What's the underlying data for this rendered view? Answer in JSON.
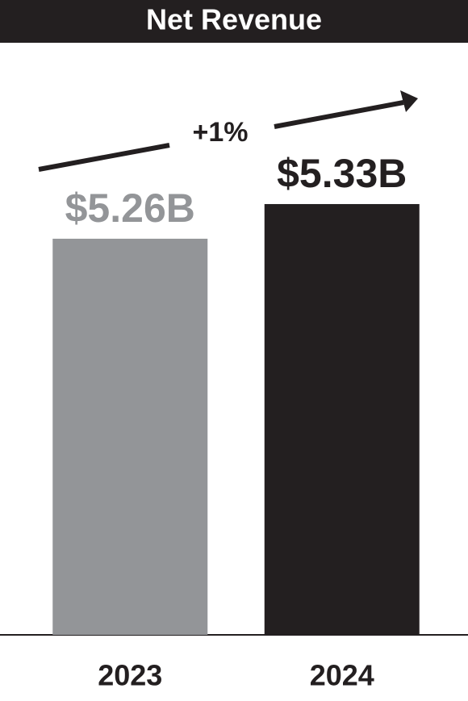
{
  "chart_data": {
    "type": "bar",
    "title": "Net Revenue",
    "categories": [
      "2023",
      "2024"
    ],
    "values": [
      5.26,
      5.33
    ],
    "value_labels": [
      "$5.26B",
      "$5.33B"
    ],
    "colors": [
      "#939598",
      "#231f20"
    ],
    "annotation": "+1%",
    "ylim": [
      4.46,
      5.4
    ]
  }
}
